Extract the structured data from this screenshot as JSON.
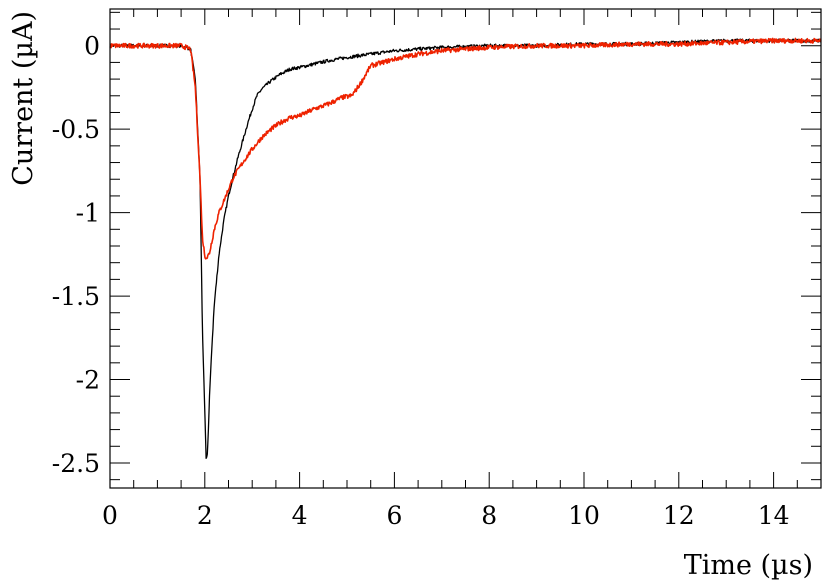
{
  "chart_data": {
    "type": "line",
    "title": "",
    "xlabel": "Time (µs)",
    "ylabel": "Current (µA)",
    "xlim": [
      0,
      15
    ],
    "ylim": [
      -2.65,
      0.22
    ],
    "x_ticks": [
      0,
      2,
      4,
      6,
      8,
      10,
      12,
      14
    ],
    "y_ticks": [
      0,
      -0.5,
      -1,
      -1.5,
      -2,
      -2.5
    ],
    "x_tick_labels": [
      "0",
      "2",
      "4",
      "6",
      "8",
      "10",
      "12",
      "14"
    ],
    "y_tick_labels": [
      "0",
      "-0.5",
      "-1",
      "-1.5",
      "-2",
      "-2.5"
    ],
    "grid": false,
    "legend": "none",
    "series": [
      {
        "color": "#000000",
        "x": [
          0,
          0.5,
          1.0,
          1.5,
          1.7,
          1.8,
          1.9,
          1.95,
          2.0,
          2.03,
          2.06,
          2.1,
          2.15,
          2.2,
          2.3,
          2.4,
          2.5,
          2.6,
          2.7,
          2.8,
          2.9,
          3.0,
          3.1,
          3.2,
          3.4,
          3.6,
          3.8,
          4.0,
          4.3,
          4.6,
          5.0,
          5.5,
          6.0,
          6.5,
          7.0,
          8.0,
          9.0,
          10.0,
          11.0,
          12.0,
          13.0,
          14.0,
          15.0
        ],
        "y": [
          0.0,
          0.0,
          0.0,
          0.0,
          -0.02,
          -0.2,
          -0.8,
          -1.7,
          -2.2,
          -2.5,
          -2.42,
          -2.1,
          -1.8,
          -1.55,
          -1.25,
          -1.05,
          -0.9,
          -0.78,
          -0.67,
          -0.57,
          -0.47,
          -0.38,
          -0.3,
          -0.26,
          -0.21,
          -0.17,
          -0.14,
          -0.13,
          -0.11,
          -0.09,
          -0.07,
          -0.05,
          -0.03,
          -0.02,
          -0.01,
          0.0,
          0.0,
          0.01,
          0.01,
          0.02,
          0.03,
          0.03,
          0.03
        ]
      },
      {
        "color": "#ee2200",
        "x": [
          0,
          0.5,
          1.0,
          1.5,
          1.7,
          1.8,
          1.9,
          1.95,
          2.0,
          2.05,
          2.1,
          2.15,
          2.2,
          2.3,
          2.4,
          2.5,
          2.6,
          2.8,
          3.0,
          3.2,
          3.4,
          3.6,
          3.8,
          4.0,
          4.3,
          4.6,
          4.9,
          5.1,
          5.3,
          5.5,
          6.0,
          6.5,
          7.0,
          8.0,
          9.0,
          10.0,
          11.0,
          12.0,
          13.0,
          14.0,
          15.0
        ],
        "y": [
          0.0,
          0.0,
          0.0,
          0.0,
          -0.02,
          -0.25,
          -0.8,
          -1.15,
          -1.26,
          -1.27,
          -1.24,
          -1.17,
          -1.1,
          -1.0,
          -0.93,
          -0.86,
          -0.79,
          -0.7,
          -0.62,
          -0.55,
          -0.5,
          -0.46,
          -0.43,
          -0.42,
          -0.38,
          -0.35,
          -0.31,
          -0.3,
          -0.22,
          -0.12,
          -0.08,
          -0.05,
          -0.03,
          -0.01,
          0.0,
          0.0,
          0.01,
          0.01,
          0.02,
          0.03,
          0.03
        ]
      }
    ]
  }
}
